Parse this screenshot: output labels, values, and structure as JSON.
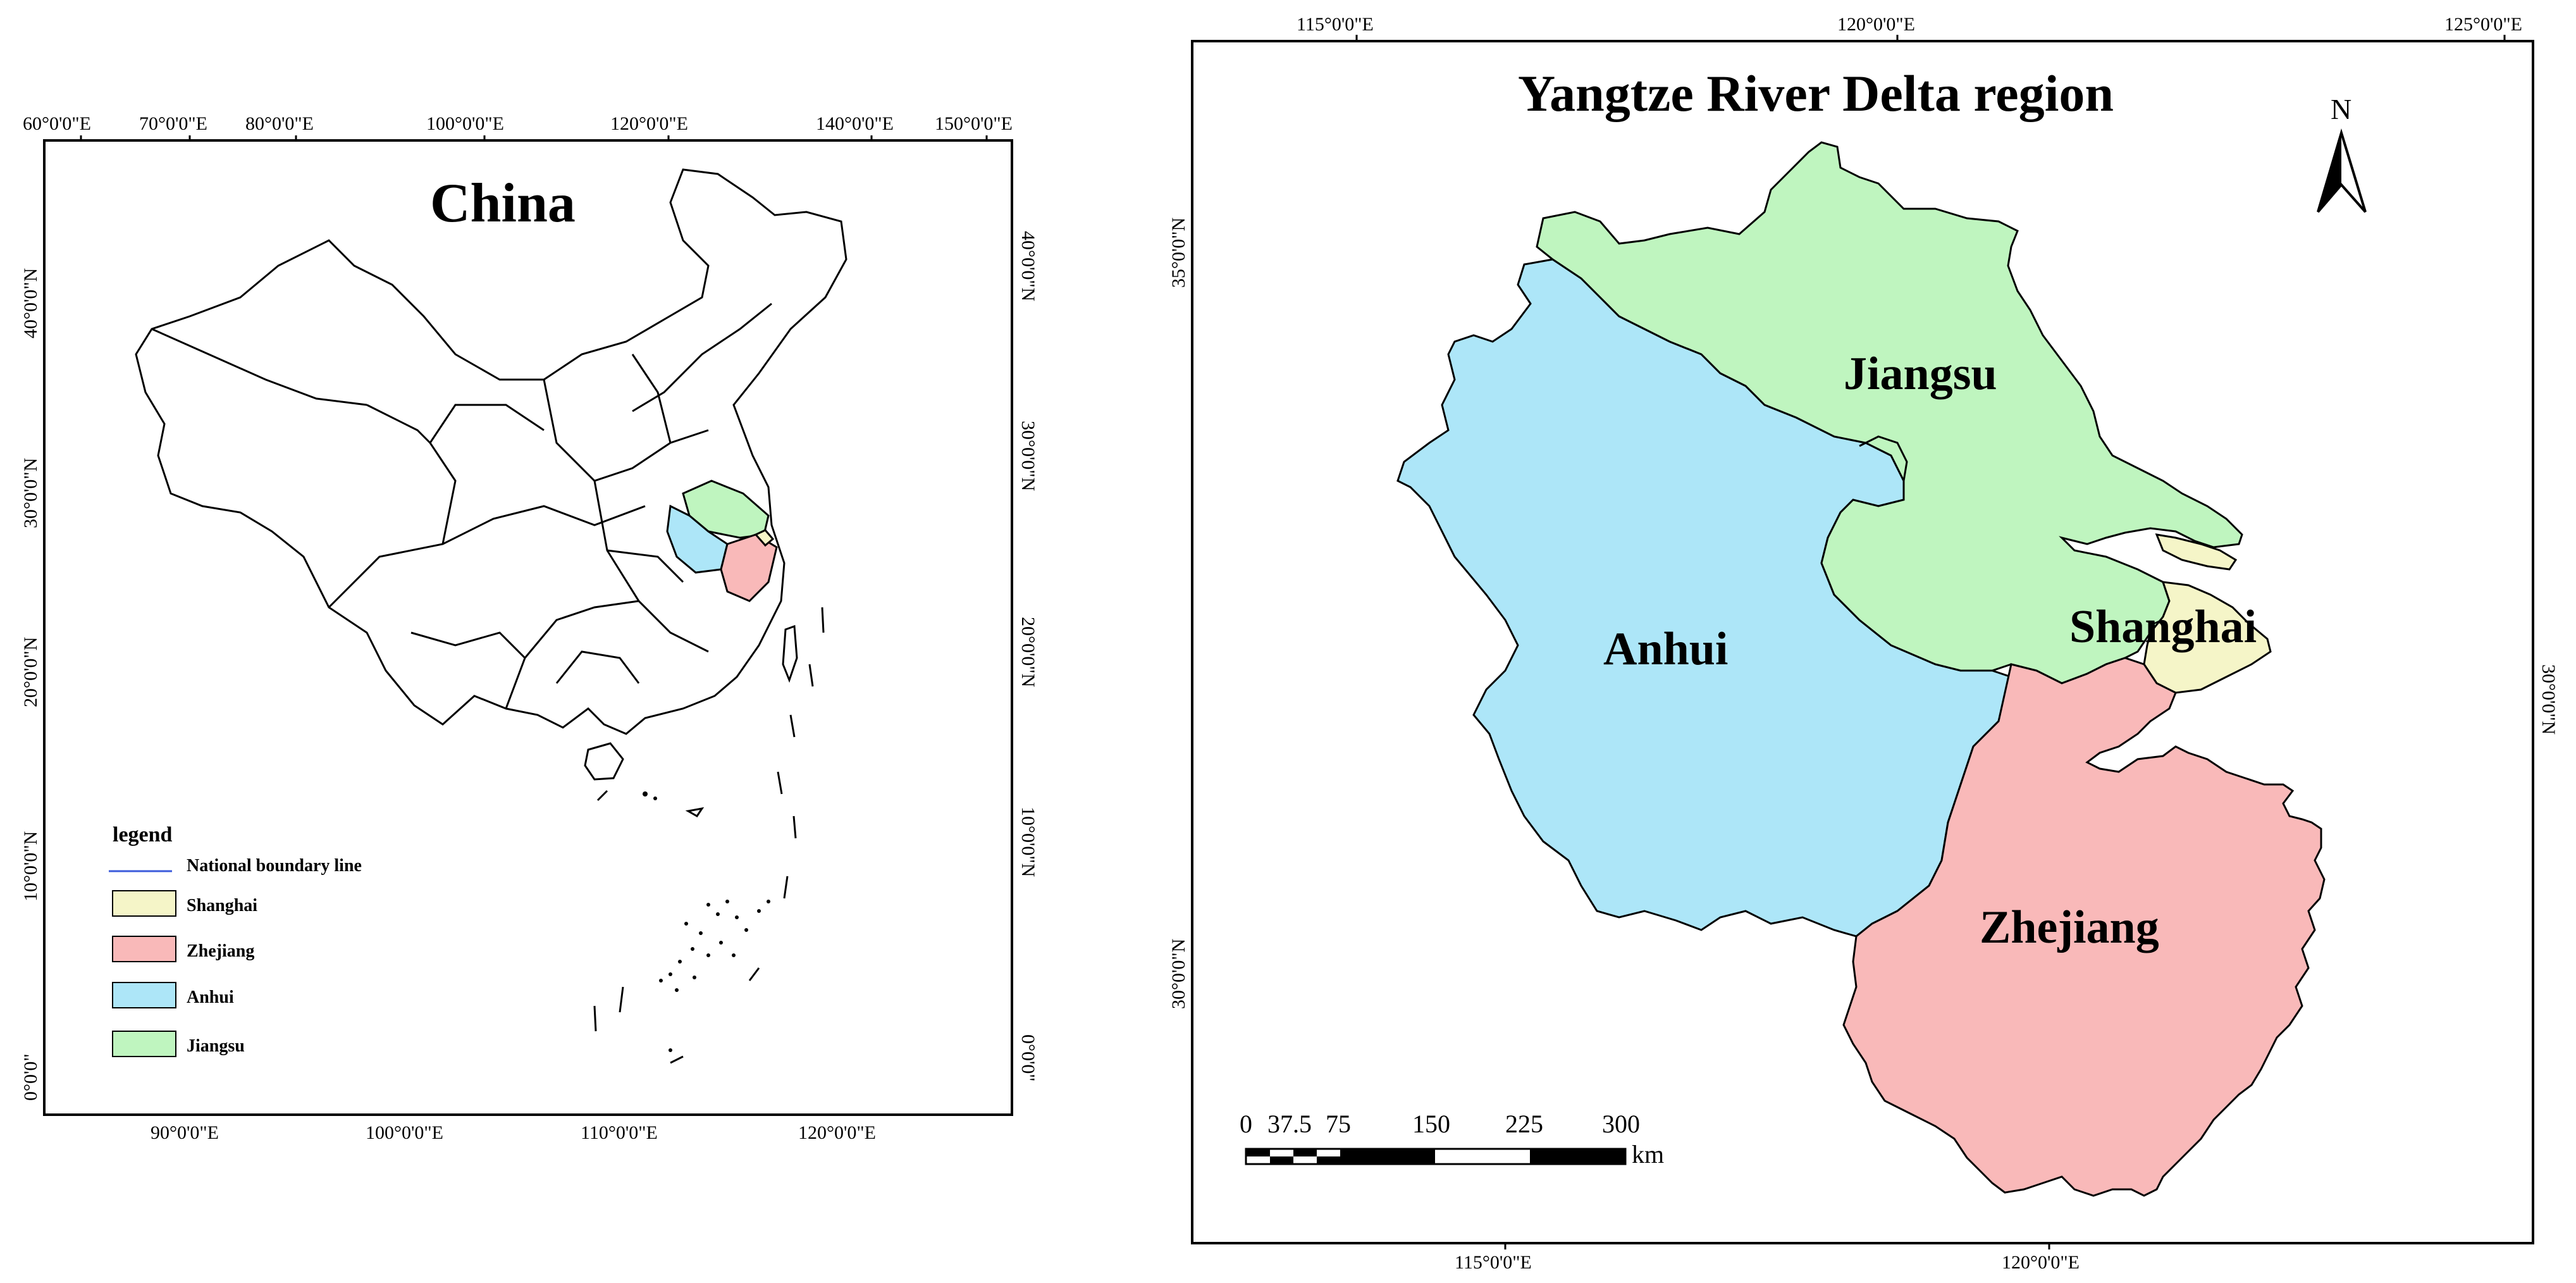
{
  "china_map": {
    "title": "China",
    "top_ticks": [
      "60°0'0\"E",
      "70°0'0\"E",
      "80°0'0\"E",
      "100°0'0\"E",
      "120°0'0\"E",
      "140°0'0\"E",
      "150°0'0\"E"
    ],
    "bottom_ticks": [
      "90°0'0\"E",
      "100°0'0\"E",
      "110°0'0\"E",
      "120°0'0\"E"
    ],
    "left_ticks": [
      "40°0'0\"N",
      "30°0'0\"N",
      "20°0'0\"N",
      "10°0'0\"N",
      "0°0'0\""
    ],
    "right_ticks": [
      "40°0'0\"N",
      "30°0'0\"N",
      "20°0'0\"N",
      "10°0'0\"N",
      "0°0'0\""
    ],
    "legend": {
      "title": "legend",
      "items": [
        {
          "label": "National boundary line",
          "kind": "line",
          "color": "#3b5bdb"
        },
        {
          "label": "Shanghai",
          "kind": "box",
          "color": "#f5f5c8"
        },
        {
          "label": "Zhejiang",
          "kind": "box",
          "color": "#f9b9b9"
        },
        {
          "label": "Anhui",
          "kind": "box",
          "color": "#ade6f8"
        },
        {
          "label": "Jiangsu",
          "kind": "box",
          "color": "#bff5bf"
        }
      ]
    }
  },
  "delta_map": {
    "title": "Yangtze River Delta region",
    "top_ticks": [
      "115°0'0\"E",
      "120°0'0\"E",
      "125°0'0\"E"
    ],
    "bottom_ticks": [
      "115°0'0\"E",
      "120°0'0\"E"
    ],
    "left_ticks": [
      "35°0'0\"N",
      "30°0'0\"N"
    ],
    "right_ticks": [
      "30°0'0\"N"
    ],
    "north_label": "N",
    "regions": [
      {
        "name": "Jiangsu",
        "color": "#bff5bf"
      },
      {
        "name": "Anhui",
        "color": "#ade6f8"
      },
      {
        "name": "Shanghai",
        "color": "#f5f5c8"
      },
      {
        "name": "Zhejiang",
        "color": "#f9b9b9"
      }
    ],
    "scale_bar": {
      "labels": [
        "0",
        "37.5",
        "75",
        "150",
        "225",
        "300"
      ],
      "unit": "km"
    }
  }
}
